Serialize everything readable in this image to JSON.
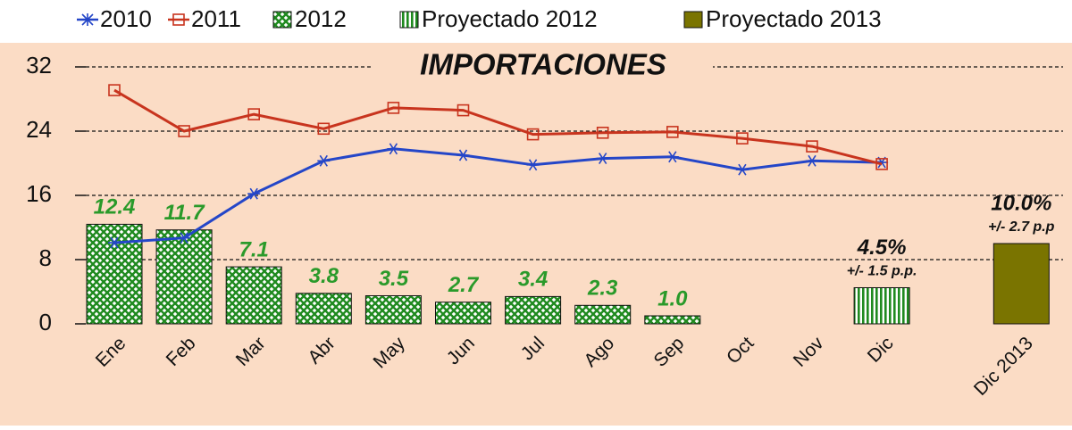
{
  "chart_data": {
    "type": "combo",
    "title": "IMPORTACIONES",
    "categories": [
      "Ene",
      "Feb",
      "Mar",
      "Abr",
      "May",
      "Jun",
      "Jul",
      "Ago",
      "Sep",
      "Oct",
      "Nov",
      "Dic",
      null,
      "Dic 2013"
    ],
    "ylim": [
      0,
      32
    ],
    "yticks": [
      0,
      8,
      16,
      24,
      32
    ],
    "grid": true,
    "legend": "top",
    "series": [
      {
        "name": "2010",
        "type": "line",
        "marker": "asterisk",
        "color": "#2446c8",
        "values": [
          10.1,
          10.7,
          16.2,
          20.3,
          21.8,
          21.0,
          19.8,
          20.6,
          20.8,
          19.2,
          20.3,
          20.1,
          null,
          null
        ]
      },
      {
        "name": "2011",
        "type": "line",
        "marker": "square",
        "color": "#c8341e",
        "values": [
          29.1,
          24.0,
          26.1,
          24.3,
          26.9,
          26.6,
          23.6,
          23.8,
          23.9,
          23.1,
          22.1,
          19.9,
          null,
          null
        ]
      },
      {
        "name": "2012",
        "type": "bar",
        "pattern": "crosshatch",
        "color": "#1f8a1f",
        "label_color": "#2a9a2a",
        "values": [
          12.4,
          11.7,
          7.1,
          3.8,
          3.5,
          2.7,
          3.4,
          2.3,
          1.0,
          null,
          null,
          null,
          null,
          null
        ],
        "value_labels": [
          "12.4",
          "11.7",
          "7.1",
          "3.8",
          "3.5",
          "2.7",
          "3.4",
          "2.3",
          "1.0",
          null,
          null,
          null,
          null,
          null
        ]
      },
      {
        "name": "Proyectado 2012",
        "type": "bar",
        "pattern": "vertical",
        "color": "#1f8a1f",
        "label_color": "#111111",
        "values": [
          null,
          null,
          null,
          null,
          null,
          null,
          null,
          null,
          null,
          null,
          null,
          4.5,
          null,
          null
        ],
        "value_labels": [
          null,
          null,
          null,
          null,
          null,
          null,
          null,
          null,
          null,
          null,
          null,
          "4.5%",
          null,
          null
        ],
        "annotations": [
          null,
          null,
          null,
          null,
          null,
          null,
          null,
          null,
          null,
          null,
          null,
          "+/- 1.5 p.p.",
          null,
          null
        ]
      },
      {
        "name": "Proyectado 2013",
        "type": "bar",
        "pattern": "solid",
        "color": "#7a7400",
        "label_color": "#111111",
        "values": [
          null,
          null,
          null,
          null,
          null,
          null,
          null,
          null,
          null,
          null,
          null,
          null,
          null,
          10.0
        ],
        "value_labels": [
          null,
          null,
          null,
          null,
          null,
          null,
          null,
          null,
          null,
          null,
          null,
          null,
          null,
          "10.0%"
        ],
        "annotations": [
          null,
          null,
          null,
          null,
          null,
          null,
          null,
          null,
          null,
          null,
          null,
          null,
          null,
          "+/- 2.7 p.p"
        ]
      }
    ]
  }
}
